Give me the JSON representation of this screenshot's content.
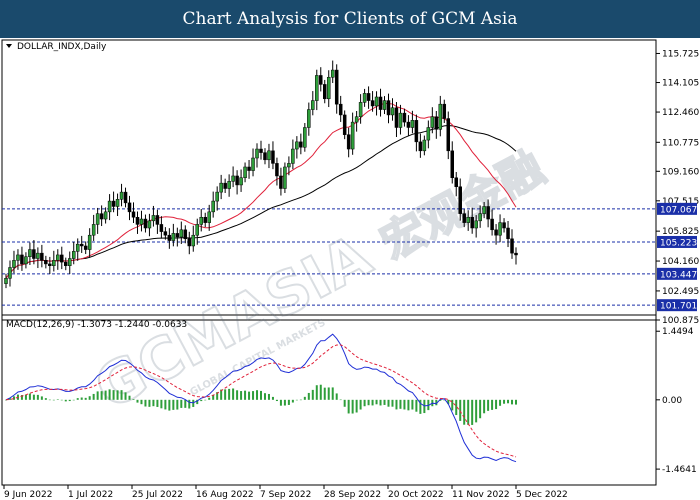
{
  "header": {
    "title": "Chart Analysis for Clients of GCM Asia"
  },
  "price_panel": {
    "label": "DOLLAR_INDX,Daily"
  },
  "macd_panel": {
    "label": "MACD(12,26,9) -1.3073 -1.2440 -0.0633"
  },
  "watermark": {
    "text": "GCMASIA",
    "chinese": "宏观金融",
    "sub": "GLOBAL CAPITAL MARKETS"
  },
  "colors": {
    "header_bg": "#1a4a6c",
    "bull_candle": "#2e9e3a",
    "bear_candle": "#000000",
    "ma_fast": "#e0213a",
    "ma_slow": "#000000",
    "macd_line": "#1f2fd6",
    "signal_line": "#e0213a",
    "histogram": "#2e9e3a",
    "level_line": "#1a2fa8",
    "level_badge": "#1a2fa8"
  },
  "chart_data": [
    {
      "type": "candlestick",
      "title": "DOLLAR_INDX,Daily",
      "ylim": [
        100.875,
        116.475
      ],
      "y_ticks": [
        {
          "value": 115.725,
          "label": "115.725"
        },
        {
          "value": 114.105,
          "label": "114.105"
        },
        {
          "value": 112.46,
          "label": "112.460"
        },
        {
          "value": 110.775,
          "label": "110.775"
        },
        {
          "value": 109.16,
          "label": "109.160"
        },
        {
          "value": 107.515,
          "label": "107.515"
        },
        {
          "value": 105.825,
          "label": "105.825"
        },
        {
          "value": 104.16,
          "label": "104.160"
        },
        {
          "value": 102.495,
          "label": "102.495"
        },
        {
          "value": 100.875,
          "label": "100.875"
        }
      ],
      "levels": [
        {
          "value": 107.067,
          "label": "107.067"
        },
        {
          "value": 105.223,
          "label": "105.223"
        },
        {
          "value": 103.447,
          "label": "103.447"
        },
        {
          "value": 101.701,
          "label": "101.701"
        }
      ],
      "x_labels": [
        "9 Jun 2022",
        "1 Jul 2022",
        "25 Jul 2022",
        "16 Aug 2022",
        "7 Sep 2022",
        "28 Sep 2022",
        "20 Oct 2022",
        "11 Nov 2022",
        "5 Dec 2022"
      ],
      "closes": [
        103.2,
        103.8,
        104.2,
        104.5,
        104.0,
        104.4,
        104.8,
        104.3,
        104.6,
        104.2,
        104.0,
        103.9,
        104.2,
        104.5,
        104.1,
        103.9,
        104.3,
        104.7,
        105.1,
        105.0,
        104.8,
        105.6,
        106.2,
        106.8,
        106.5,
        106.9,
        107.5,
        107.2,
        107.6,
        108.0,
        107.4,
        106.9,
        106.6,
        106.2,
        106.5,
        106.0,
        106.4,
        106.7,
        106.2,
        105.8,
        105.6,
        105.3,
        105.7,
        105.5,
        105.9,
        105.4,
        105.0,
        105.6,
        106.2,
        106.6,
        106.3,
        106.9,
        107.5,
        108.0,
        108.5,
        108.2,
        108.6,
        108.9,
        108.4,
        108.8,
        109.4,
        109.2,
        109.9,
        110.4,
        110.2,
        109.8,
        110.3,
        109.6,
        108.9,
        108.2,
        109.4,
        109.6,
        110.4,
        110.8,
        110.5,
        111.6,
        112.6,
        113.1,
        114.5,
        114.0,
        113.2,
        114.4,
        114.8,
        112.9,
        112.3,
        111.2,
        110.4,
        111.9,
        112.2,
        113.0,
        113.5,
        113.1,
        112.8,
        113.3,
        112.6,
        113.1,
        112.3,
        112.7,
        111.6,
        112.4,
        111.9,
        111.6,
        112.0,
        110.8,
        110.3,
        110.9,
        111.6,
        112.2,
        111.5,
        112.9,
        112.1,
        110.3,
        108.8,
        108.3,
        106.8,
        106.3,
        106.6,
        106.0,
        106.4,
        106.8,
        107.2,
        106.5,
        105.9,
        105.6,
        106.3,
        106.0,
        105.4,
        104.6,
        104.5
      ]
    },
    {
      "type": "macd",
      "title": "MACD(12,26,9) -1.3073 -1.2440 -0.0633",
      "ylim": [
        -1.8,
        1.75
      ],
      "y_ticks": [
        {
          "value": 1.4494,
          "label": "1.4494"
        },
        {
          "value": 0.0,
          "label": "0.00"
        },
        {
          "value": -1.4641,
          "label": "-1.4641"
        }
      ],
      "macd": -1.3073,
      "signal": -1.244,
      "histogram": -0.0633
    }
  ]
}
